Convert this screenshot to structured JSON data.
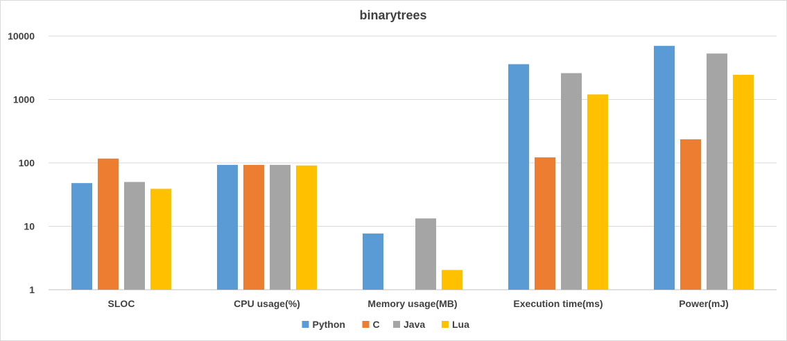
{
  "chart_data": {
    "type": "bar",
    "title": "binarytrees",
    "xlabel": "",
    "ylabel": "",
    "yscale": "log",
    "ylim": [
      1,
      10000
    ],
    "yticks": [
      "1",
      "10",
      "100",
      "1000",
      "10000"
    ],
    "grid": true,
    "legend_position": "bottom",
    "categories": [
      "SLOC",
      "CPU usage(%)",
      "Memory usage(MB)",
      "Execution time(ms)",
      "Power(mJ)"
    ],
    "series": [
      {
        "name": "Python",
        "color": "#5b9bd5",
        "values": [
          48,
          93,
          7.7,
          3600,
          7000
        ]
      },
      {
        "name": "C",
        "color": "#ed7d31",
        "values": [
          117,
          93,
          1,
          122,
          235
        ]
      },
      {
        "name": "Java",
        "color": "#a5a5a5",
        "values": [
          50,
          93,
          13.3,
          2600,
          5300
        ]
      },
      {
        "name": "Lua",
        "color": "#ffc000",
        "values": [
          39,
          91,
          2.05,
          1200,
          2450
        ]
      }
    ]
  }
}
